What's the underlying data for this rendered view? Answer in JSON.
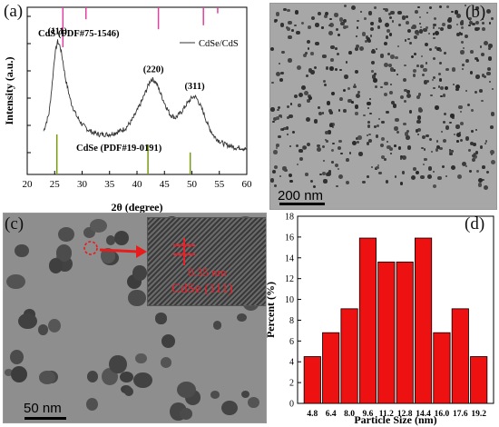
{
  "panels": {
    "a": {
      "label": "(a)"
    },
    "b": {
      "label": "(b)",
      "scale_text": "200 nm"
    },
    "c": {
      "label": "(c)",
      "scale_text": "50 nm",
      "inset_spacing": "0.35 nm",
      "inset_plane": "CdSe (111)"
    },
    "d": {
      "label": "(d)"
    }
  },
  "chart_data": [
    {
      "type": "line",
      "panel": "a",
      "xlabel": "2θ (degree)",
      "ylabel": "Intensity (a.u.)",
      "xlim": [
        20,
        60
      ],
      "xticks": [
        20,
        25,
        30,
        35,
        40,
        45,
        50,
        55,
        60
      ],
      "grid": false,
      "legend": {
        "entries": [
          "CdSe/CdS"
        ],
        "position": "top-right"
      },
      "series": [
        {
          "name": "CdSe/CdS",
          "color": "#333333",
          "x": [
            20,
            21,
            22,
            23,
            24,
            24.5,
            25,
            25.5,
            26,
            26.5,
            27,
            28,
            29,
            30,
            31,
            32,
            33,
            34,
            35,
            36,
            37,
            38,
            39,
            40,
            41,
            42,
            42.5,
            43,
            43.5,
            44,
            45,
            46,
            47,
            48,
            49,
            50,
            50.5,
            51,
            52,
            53,
            54,
            55,
            56,
            57,
            58,
            59,
            60
          ],
          "y": [
            0.04,
            0.05,
            0.08,
            0.13,
            0.24,
            0.4,
            0.58,
            0.67,
            0.64,
            0.55,
            0.44,
            0.3,
            0.22,
            0.17,
            0.14,
            0.12,
            0.11,
            0.11,
            0.11,
            0.12,
            0.13,
            0.15,
            0.19,
            0.25,
            0.32,
            0.4,
            0.44,
            0.44,
            0.42,
            0.38,
            0.3,
            0.23,
            0.21,
            0.24,
            0.29,
            0.33,
            0.34,
            0.32,
            0.25,
            0.16,
            0.1,
            0.07,
            0.05,
            0.04,
            0.03,
            0.03,
            0.02
          ]
        }
      ],
      "peak_labels": [
        {
          "text": "(111)",
          "x": 25.5,
          "y": 0.67
        },
        {
          "text": "(220)",
          "x": 43,
          "y": 0.44
        },
        {
          "text": "(311)",
          "x": 50.5,
          "y": 0.34
        }
      ],
      "reference_patterns": [
        {
          "name": "CdS (PDF#75-1546)",
          "color": "#e040a0",
          "side": "top",
          "x": [
            26.5,
            30.7,
            43.9,
            52.1,
            54.7
          ],
          "rel": [
            1.0,
            0.3,
            0.55,
            0.45,
            0.15
          ]
        },
        {
          "name": "CdSe (PDF#19-0191)",
          "color": "#7a9a10",
          "side": "bottom",
          "x": [
            25.4,
            42.0,
            49.7
          ],
          "rel": [
            1.0,
            0.75,
            0.55
          ]
        }
      ]
    },
    {
      "type": "bar",
      "panel": "d",
      "xlabel": "Particle Size (nm)",
      "ylabel": "Percent (%)",
      "ylim": [
        0,
        18
      ],
      "yticks": [
        0,
        2,
        4,
        6,
        8,
        10,
        12,
        14,
        16,
        18
      ],
      "categories": [
        "4.8",
        "6.4",
        "8.0",
        "9.6",
        "11.2",
        "12.8",
        "14.4",
        "16.0",
        "17.6",
        "19.2"
      ],
      "values": [
        4.5,
        6.8,
        9.1,
        15.9,
        13.6,
        13.6,
        15.9,
        6.8,
        9.1,
        4.5
      ],
      "color": "#ee1111",
      "grid": false
    }
  ]
}
